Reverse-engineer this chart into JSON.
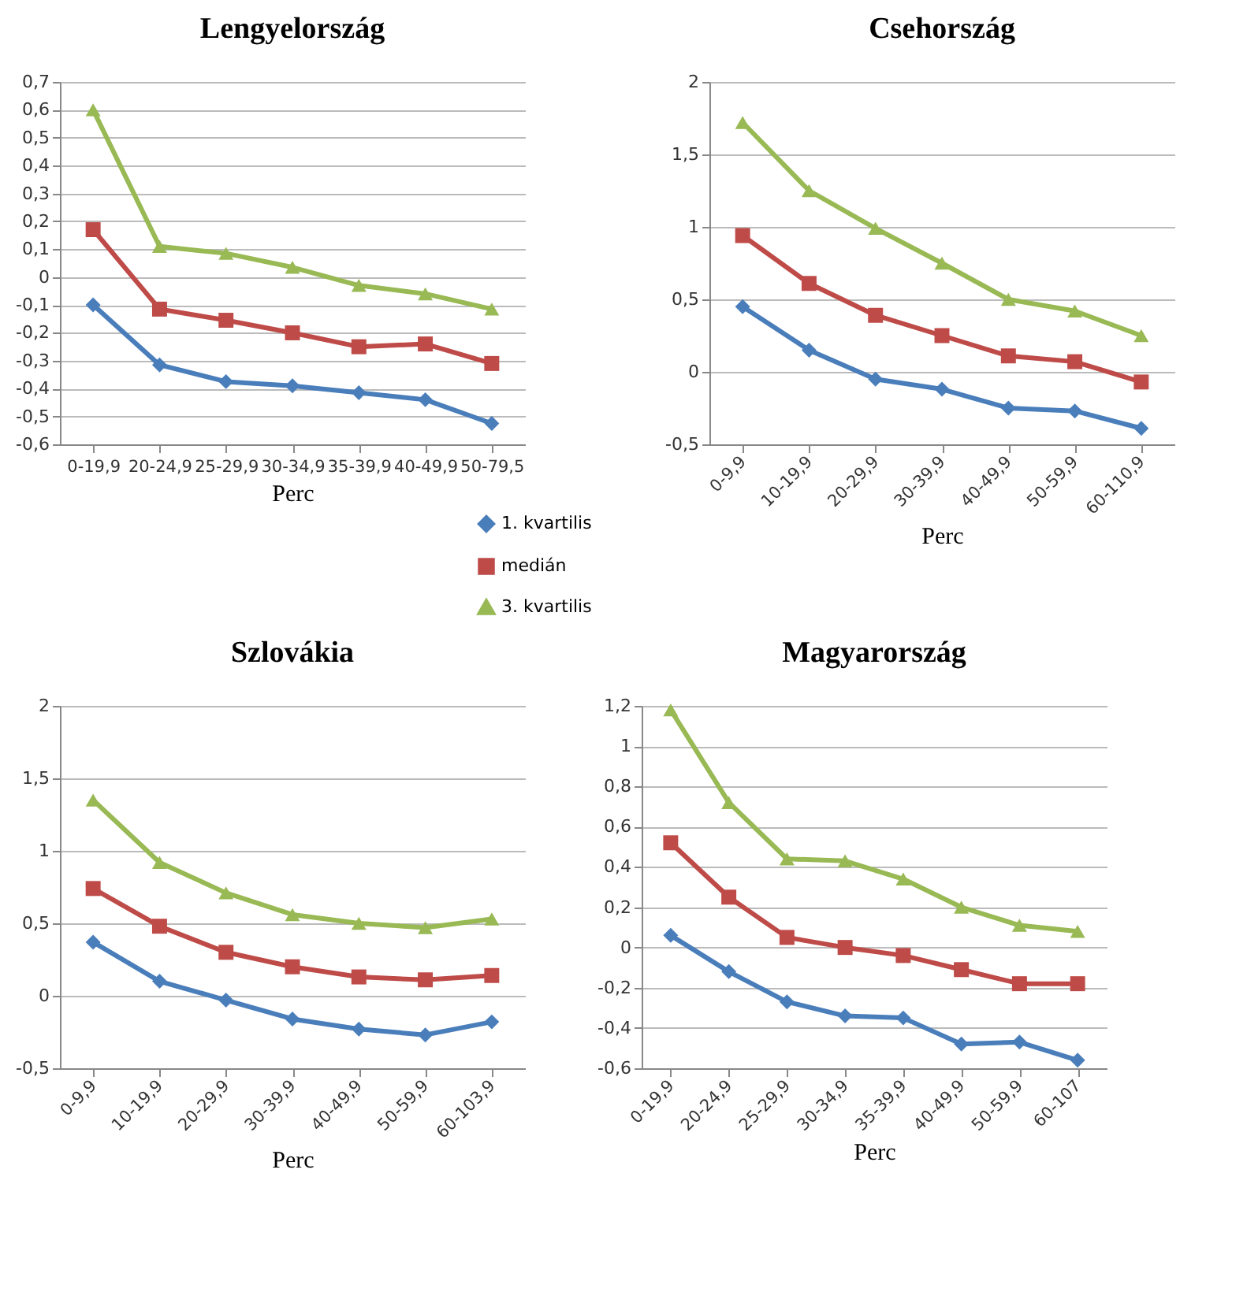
{
  "chart_data": [
    {
      "type": "line",
      "title": "Lengyelország",
      "xlabel": "Perc",
      "categories": [
        "0-19,9",
        "20-24,9",
        "25-29,9",
        "30-34,9",
        "35-39,9",
        "40-49,9",
        "50-79,5"
      ],
      "series": [
        {
          "name": "1. kvartilis",
          "color": "#4a7ebb",
          "marker": "diamond",
          "values": [
            -0.1,
            -0.315,
            -0.375,
            -0.39,
            -0.415,
            -0.44,
            -0.525
          ]
        },
        {
          "name": "medián",
          "color": "#be4b48",
          "marker": "square",
          "values": [
            0.17,
            -0.115,
            -0.155,
            -0.2,
            -0.25,
            -0.24,
            -0.31
          ]
        },
        {
          "name": "3. kvartilis",
          "color": "#98b954",
          "marker": "triangle",
          "values": [
            0.6,
            0.11,
            0.085,
            0.035,
            -0.03,
            -0.06,
            -0.115
          ]
        }
      ],
      "ylim": [
        -0.6,
        0.7
      ],
      "yticks": [
        {
          "value": -0.6,
          "label": "-0,6"
        },
        {
          "value": -0.5,
          "label": "-0,5"
        },
        {
          "value": -0.4,
          "label": "-0,4"
        },
        {
          "value": -0.3,
          "label": "-0,3"
        },
        {
          "value": -0.2,
          "label": "-0,2"
        },
        {
          "value": -0.1,
          "label": "-0,1"
        },
        0,
        {
          "value": 0.1,
          "label": "0,1"
        },
        {
          "value": 0.2,
          "label": "0,2"
        },
        {
          "value": 0.3,
          "label": "0,3"
        },
        {
          "value": 0.4,
          "label": "0,4"
        },
        {
          "value": 0.5,
          "label": "0,5"
        },
        {
          "value": 0.6,
          "label": "0,6"
        },
        {
          "value": 0.7,
          "label": "0,7"
        }
      ],
      "grid": "y",
      "legend": "bottom right"
    },
    {
      "type": "line",
      "title": "Csehország",
      "xlabel": "Perc",
      "categories": [
        "0-9,9",
        "10-19,9",
        "20-29,9",
        "30-39,9",
        "40-49,9",
        "50-59,9",
        "60-110,9"
      ],
      "series": [
        {
          "color": "#4a7ebb",
          "marker": "diamond",
          "values": [
            0.45,
            0.15,
            -0.05,
            -0.12,
            -0.25,
            -0.27,
            -0.39
          ]
        },
        {
          "color": "#be4b48",
          "marker": "square",
          "values": [
            0.94,
            0.61,
            0.39,
            0.25,
            0.11,
            0.07,
            -0.07
          ]
        },
        {
          "color": "#98b954",
          "marker": "triangle",
          "values": [
            1.72,
            1.25,
            0.99,
            0.75,
            0.5,
            0.42,
            0.25
          ]
        }
      ],
      "ylim": [
        -0.5,
        2
      ],
      "yticks": [
        {
          "value": -0.5,
          "label": "-0,5"
        },
        0,
        {
          "value": 0.5,
          "label": "0,5"
        },
        1,
        {
          "value": 1.5,
          "label": "1,5"
        },
        2
      ],
      "grid": "y"
    },
    {
      "type": "line",
      "title": "Szlovákia",
      "xlabel": "Perc",
      "categories": [
        "0-9,9",
        "10-19,9",
        "20-29,9",
        "30-39,9",
        "40-49,9",
        "50-59,9",
        "60-103,9"
      ],
      "series": [
        {
          "color": "#4a7ebb",
          "marker": "diamond",
          "values": [
            0.37,
            0.1,
            -0.03,
            -0.16,
            -0.23,
            -0.27,
            -0.18
          ]
        },
        {
          "color": "#be4b48",
          "marker": "square",
          "values": [
            0.74,
            0.48,
            0.3,
            0.2,
            0.13,
            0.11,
            0.14
          ]
        },
        {
          "color": "#98b954",
          "marker": "triangle",
          "values": [
            1.35,
            0.92,
            0.71,
            0.56,
            0.5,
            0.47,
            0.53
          ]
        }
      ],
      "ylim": [
        -0.5,
        2
      ],
      "yticks": [
        {
          "value": -0.5,
          "label": "-0,5"
        },
        0,
        {
          "value": 0.5,
          "label": "0,5"
        },
        1,
        {
          "value": 1.5,
          "label": "1,5"
        },
        2
      ],
      "grid": "y"
    },
    {
      "type": "line",
      "title": "Magyarország",
      "xlabel": "Perc",
      "categories": [
        "0-19,9",
        "20-24,9",
        "25-29,9",
        "30-34,9",
        "35-39,9",
        "40-49,9",
        "50-59,9",
        "60-107"
      ],
      "series": [
        {
          "color": "#4a7ebb",
          "marker": "diamond",
          "values": [
            0.06,
            -0.12,
            -0.27,
            -0.34,
            -0.35,
            -0.48,
            -0.47,
            -0.56
          ]
        },
        {
          "color": "#be4b48",
          "marker": "square",
          "values": [
            0.52,
            0.25,
            0.05,
            0.0,
            -0.04,
            -0.11,
            -0.18,
            -0.18
          ]
        },
        {
          "color": "#98b954",
          "marker": "triangle",
          "values": [
            1.18,
            0.72,
            0.44,
            0.43,
            0.34,
            0.2,
            0.11,
            0.08
          ]
        }
      ],
      "ylim": [
        -0.6,
        1.2
      ],
      "yticks": [
        {
          "value": -0.6,
          "label": "-0,6"
        },
        {
          "value": -0.4,
          "label": "-0,4"
        },
        {
          "value": -0.2,
          "label": "-0,2"
        },
        0,
        {
          "value": 0.2,
          "label": "0,2"
        },
        {
          "value": 0.4,
          "label": "0,4"
        },
        {
          "value": 0.6,
          "label": "0,6"
        },
        {
          "value": 0.8,
          "label": "0,8"
        },
        1,
        {
          "value": 1.2,
          "label": "1,2"
        }
      ],
      "grid": "y"
    }
  ]
}
